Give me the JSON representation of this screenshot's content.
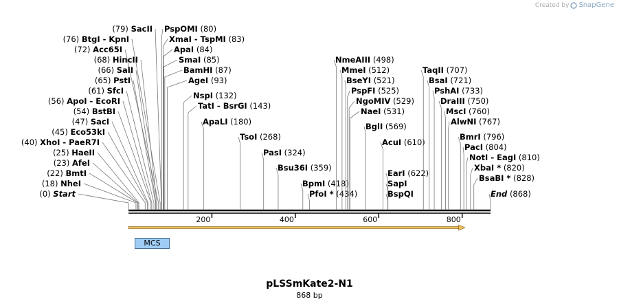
{
  "credit": {
    "prefix": "Created by",
    "brand": "SnapGene",
    "icon": "snapgene-logo-icon"
  },
  "plasmid": {
    "name": "pLSSmKate2-N1",
    "length_label": "868 bp",
    "length": 868
  },
  "feature": {
    "label": "MCS",
    "start": 17,
    "end": 115,
    "color": "#9fcdf6"
  },
  "orf_arrow": {
    "start": 0,
    "end": 800,
    "color": "#f0c060"
  },
  "ticks": [
    {
      "pos": 200,
      "label": "200"
    },
    {
      "pos": 400,
      "label": "400"
    },
    {
      "pos": 600,
      "label": "600"
    },
    {
      "pos": 800,
      "label": "800"
    }
  ],
  "left_labels": [
    {
      "name": "SacII",
      "pos_text": "(79)",
      "pos": 79
    },
    {
      "name": "BtgI",
      "name2": "KpnI",
      "pos_text": "(76)",
      "pos": 76
    },
    {
      "name": "Acc65I",
      "pos_text": "(72)",
      "pos": 72
    },
    {
      "name": "HincII",
      "pos_text": "(68)",
      "pos": 68
    },
    {
      "name": "SalI",
      "pos_text": "(66)",
      "pos": 66
    },
    {
      "name": "PstI",
      "pos_text": "(65)",
      "pos": 65
    },
    {
      "name": "SfcI",
      "pos_text": "(61)",
      "pos": 61
    },
    {
      "name": "ApoI",
      "name2": "EcoRI",
      "pos_text": "(56)",
      "pos": 56
    },
    {
      "name": "BstBI",
      "pos_text": "(54)",
      "pos": 54
    },
    {
      "name": "SacI",
      "pos_text": "(47)",
      "pos": 47
    },
    {
      "name": "Eco53kI",
      "pos_text": "(45)",
      "pos": 45
    },
    {
      "name": "XhoI",
      "name2": "PaeR7I",
      "pos_text": "(40)",
      "pos": 40
    },
    {
      "name": "HaeII",
      "pos_text": "(25)",
      "pos": 25
    },
    {
      "name": "AfeI",
      "pos_text": "(23)",
      "pos": 23
    },
    {
      "name": "BmtI",
      "pos_text": "(22)",
      "pos": 22
    },
    {
      "name": "NheI",
      "pos_text": "(18)",
      "pos": 18
    },
    {
      "name": "Start",
      "pos_text": "(0)",
      "pos": 0,
      "italic": true
    }
  ],
  "right_labels": [
    {
      "name": "PspOMI",
      "pos_text": "(80)",
      "pos": 80
    },
    {
      "name": "XmaI",
      "name2": "TspMI",
      "pos_text": "(83)",
      "pos": 83
    },
    {
      "name": "ApaI",
      "pos_text": "(84)",
      "pos": 84
    },
    {
      "name": "SmaI",
      "pos_text": "(85)",
      "pos": 85
    },
    {
      "name": "BamHI",
      "pos_text": "(87)",
      "pos": 87
    },
    {
      "name": "AgeI",
      "pos_text": "(93)",
      "pos": 93
    },
    {
      "name": "NspI",
      "pos_text": "(132)",
      "pos": 132
    },
    {
      "name": "TatI",
      "name2": "BsrGI",
      "pos_text": "(143)",
      "pos": 143
    },
    {
      "name": "ApaLI",
      "pos_text": "(180)",
      "pos": 180
    },
    {
      "name": "TsoI",
      "pos_text": "(268)",
      "pos": 268
    },
    {
      "name": "PasI",
      "pos_text": "(324)",
      "pos": 324
    },
    {
      "name": "Bsu36I",
      "pos_text": "(359)",
      "pos": 359
    },
    {
      "name": "BpmI",
      "pos_text": "(418)",
      "pos": 418
    },
    {
      "name": "PfoI *",
      "pos_text": "(434)",
      "pos": 434
    },
    {
      "name": "NmeAIII",
      "pos_text": "(498)",
      "pos": 498
    },
    {
      "name": "MmeI",
      "pos_text": "(512)",
      "pos": 512
    },
    {
      "name": "BseYI",
      "pos_text": "(521)",
      "pos": 521
    },
    {
      "name": "PspFI",
      "pos_text": "(525)",
      "pos": 525
    },
    {
      "name": "NgoMIV",
      "pos_text": "(529)",
      "pos": 529
    },
    {
      "name": "NaeI",
      "pos_text": "(531)",
      "pos": 531
    },
    {
      "name": "BglI",
      "pos_text": "(569)",
      "pos": 569
    },
    {
      "name": "AcuI",
      "pos_text": "(610)",
      "pos": 610
    },
    {
      "name": "EarI",
      "pos_text": "(622)",
      "pos": 622
    },
    {
      "name": "SapI",
      "pos_text": "",
      "pos": 622
    },
    {
      "name": "BspQI",
      "pos_text": "",
      "pos": 622
    },
    {
      "name": "TaqII",
      "pos_text": "(707)",
      "pos": 707
    },
    {
      "name": "BsaI",
      "pos_text": "(721)",
      "pos": 721
    },
    {
      "name": "PshAI",
      "pos_text": "(733)",
      "pos": 733
    },
    {
      "name": "DraIII",
      "pos_text": "(750)",
      "pos": 750
    },
    {
      "name": "MscI",
      "pos_text": "(760)",
      "pos": 760
    },
    {
      "name": "AlwNI",
      "pos_text": "(767)",
      "pos": 767
    },
    {
      "name": "BmrI",
      "pos_text": "(796)",
      "pos": 796
    },
    {
      "name": "PacI",
      "pos_text": "(804)",
      "pos": 804
    },
    {
      "name": "NotI",
      "name2": "EagI",
      "pos_text": "(810)",
      "pos": 810
    },
    {
      "name": "XbaI *",
      "pos_text": "(820)",
      "pos": 820
    },
    {
      "name": "BsaBI *",
      "pos_text": "(828)",
      "pos": 828
    },
    {
      "name": "End",
      "pos_text": "(868)",
      "pos": 868,
      "italic": true
    }
  ]
}
